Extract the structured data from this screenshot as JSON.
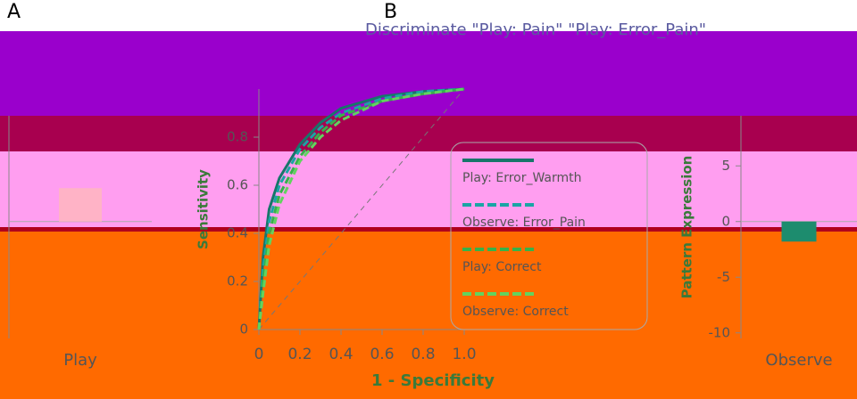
{
  "chart_data": [
    {
      "type": "bar",
      "label": "A",
      "categories": [
        "Play"
      ],
      "values": [
        3
      ],
      "color": "#ffb3c6",
      "ylim": [
        -10.5,
        9.5
      ],
      "yticks": []
    },
    {
      "type": "line",
      "label": "B",
      "title": "Discriminate \"Play: Pain\" \"Play: Error_Pain\"",
      "x_label": "1 - Specificity",
      "y_label": "Sensitivity",
      "x": [
        0,
        0.02,
        0.05,
        0.1,
        0.2,
        0.3,
        0.4,
        0.6,
        0.8,
        1
      ],
      "series": [
        {
          "name": "Play: Error_Warmth",
          "color": "#17766a",
          "dash": false,
          "values": [
            0,
            0.3,
            0.5,
            0.63,
            0.77,
            0.86,
            0.92,
            0.97,
            0.99,
            1
          ]
        },
        {
          "name": "Observe: Error_Pain",
          "color": "#1aa5a5",
          "dash": true,
          "values": [
            0,
            0.25,
            0.45,
            0.6,
            0.75,
            0.84,
            0.9,
            0.96,
            0.99,
            1
          ]
        },
        {
          "name": "Play: Correct",
          "color": "#36b24a",
          "dash": true,
          "values": [
            0,
            0.2,
            0.4,
            0.56,
            0.72,
            0.82,
            0.89,
            0.95,
            0.98,
            1
          ]
        },
        {
          "name": "Observe: Correct",
          "color": "#62d35f",
          "dash": true,
          "values": [
            0,
            0.15,
            0.35,
            0.52,
            0.7,
            0.8,
            0.87,
            0.95,
            0.98,
            1
          ]
        }
      ],
      "xlim": [
        0,
        1
      ],
      "ylim": [
        0,
        1
      ],
      "xticks": [
        0,
        0.2,
        0.4,
        0.6,
        0.8,
        {
          "value": 1,
          "label": "1.0"
        }
      ],
      "yticks": [
        0,
        0.2,
        0.4,
        0.6,
        0.8
      ]
    },
    {
      "type": "bar",
      "y_label": "Pattern Expression",
      "categories": [
        "Observe"
      ],
      "values": [
        -1.8
      ],
      "color": "#1d8c6e",
      "ylim": [
        -10.5,
        9.5
      ],
      "yticks": [
        5,
        0,
        -5,
        -10
      ]
    }
  ]
}
